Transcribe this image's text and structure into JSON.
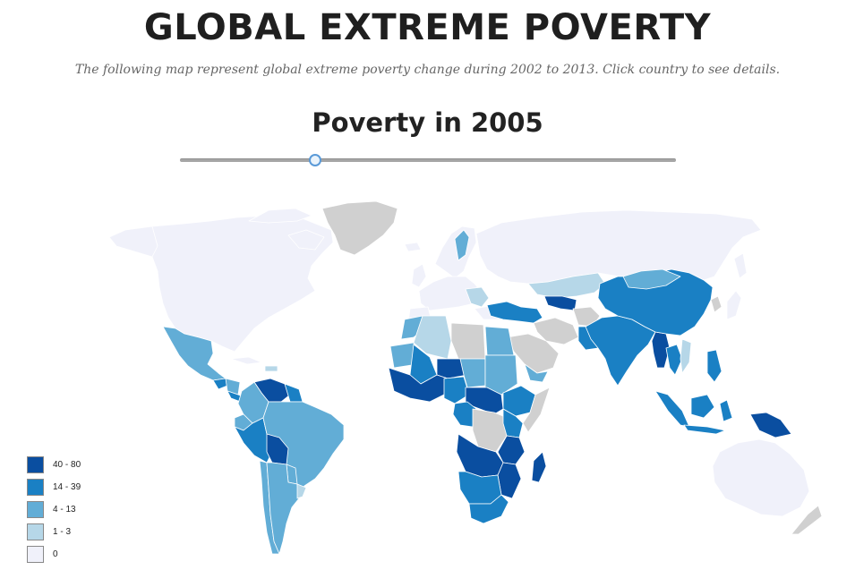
{
  "page": {
    "title": "GLOBAL EXTREME POVERTY",
    "subtitle": "The following map represent global extreme poverty change during 2002 to 2013. Click country to see details."
  },
  "year_heading": "Poverty in 2005",
  "slider": {
    "min_year": 2002,
    "max_year": 2013,
    "value": 2005
  },
  "colors": {
    "no_data": "#d0d0d0",
    "border": "#ffffff",
    "classes": [
      "#f0f1fa",
      "#b6d7e8",
      "#62add6",
      "#1a80c4",
      "#0a4ea0"
    ]
  },
  "legend": [
    {
      "label": "40 - 80",
      "color": "#0a4ea0"
    },
    {
      "label": "14 - 39",
      "color": "#1a80c4"
    },
    {
      "label": "4 - 13",
      "color": "#62add6"
    },
    {
      "label": "1 - 3",
      "color": "#b6d7e8"
    },
    {
      "label": "0",
      "color": "#f0f1fa"
    }
  ]
}
